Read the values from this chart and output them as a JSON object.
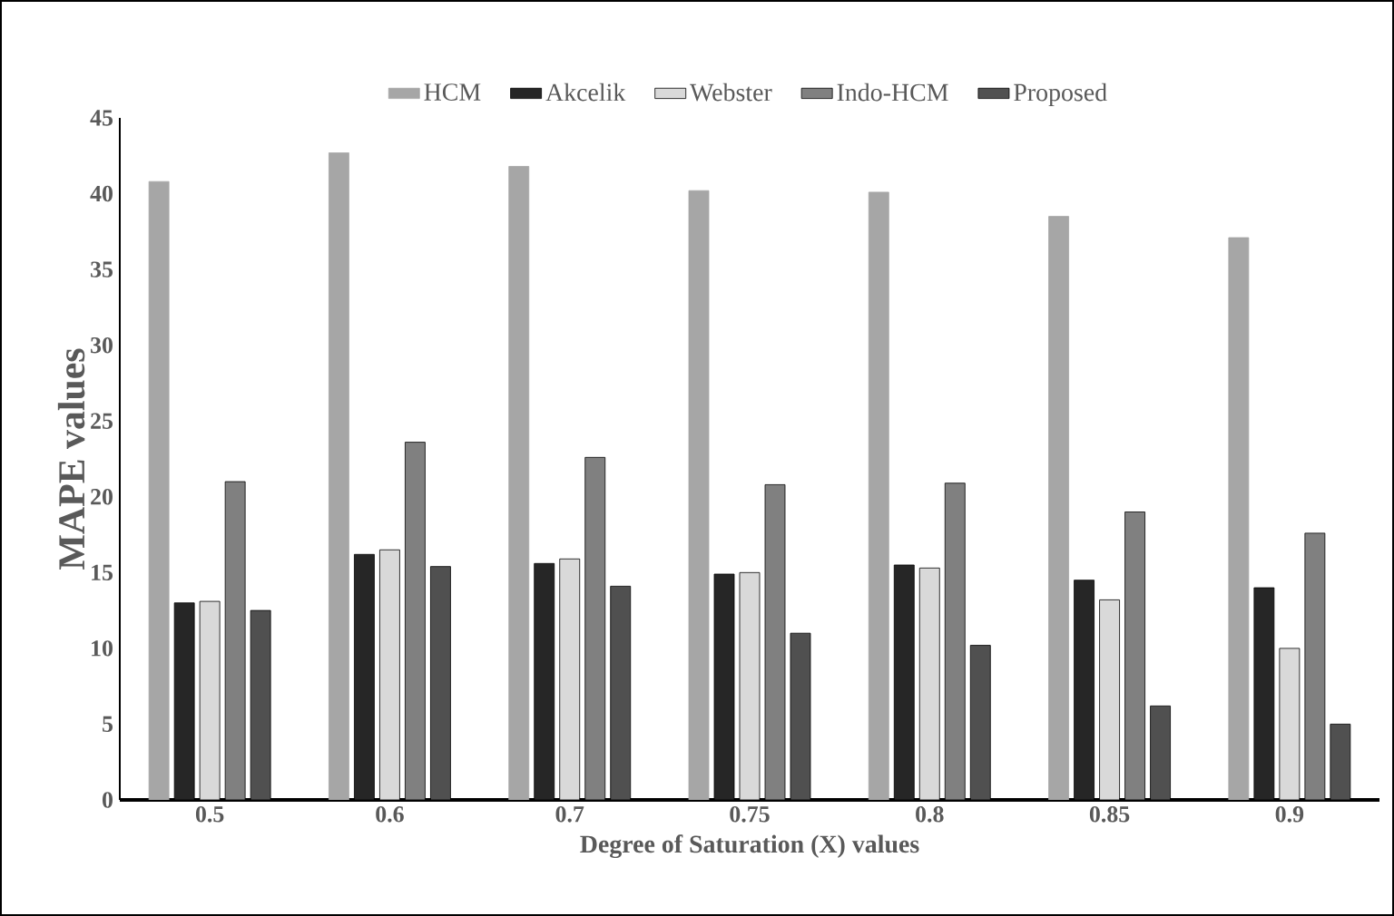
{
  "chart_data": {
    "type": "bar",
    "xlabel": "Degree of Saturation (X) values",
    "ylabel": "MAPE values",
    "categories": [
      "0.5",
      "0.6",
      "0.7",
      "0.75",
      "0.8",
      "0.85",
      "0.9"
    ],
    "series": [
      {
        "name": "HCM",
        "color": "#a6a6a6",
        "values": [
          40.8,
          42.7,
          41.8,
          40.2,
          40.1,
          38.5,
          37.1
        ]
      },
      {
        "name": "Akcelik",
        "color": "#262626",
        "values": [
          13.0,
          16.2,
          15.6,
          14.9,
          15.5,
          14.5,
          14.0
        ]
      },
      {
        "name": "Webster",
        "color": "#d9d9d9",
        "values": [
          13.1,
          16.5,
          15.9,
          15.0,
          15.3,
          13.2,
          10.0
        ]
      },
      {
        "name": "Indo-HCM",
        "color": "#808080",
        "values": [
          21.0,
          23.6,
          22.6,
          20.8,
          20.9,
          19.0,
          17.6
        ]
      },
      {
        "name": "Proposed",
        "color": "#505050",
        "values": [
          12.5,
          15.4,
          14.1,
          11.0,
          10.2,
          6.2,
          5.0
        ]
      }
    ],
    "ylim": [
      0,
      45
    ],
    "yticks": [
      0,
      5,
      10,
      15,
      20,
      25,
      30,
      35,
      40,
      45
    ],
    "grid": false,
    "legend": "top"
  }
}
